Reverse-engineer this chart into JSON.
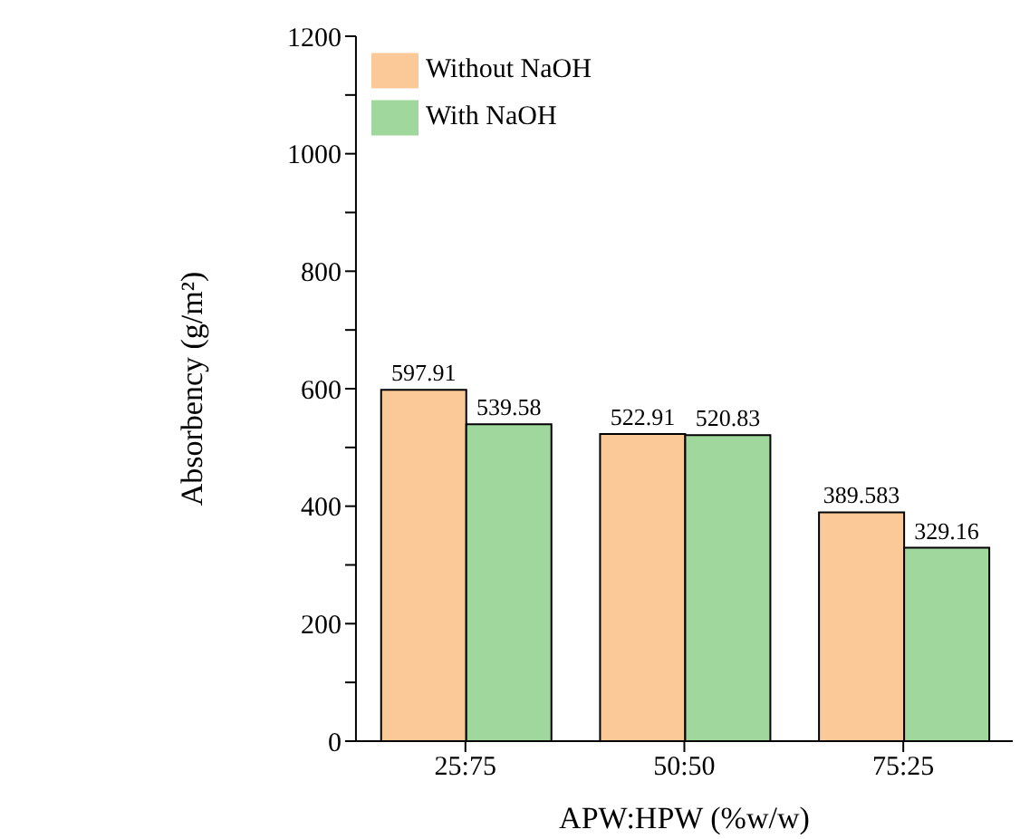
{
  "chart_data": {
    "type": "bar",
    "xlabel": "APW:HPW (%w/w)",
    "ylabel": "Absorbency (g/m²)",
    "categories": [
      "25:75",
      "50:50",
      "75:25"
    ],
    "series": [
      {
        "name": "Without NaOH",
        "color": "#fbc898",
        "values": [
          597.91,
          522.91,
          389.583
        ]
      },
      {
        "name": "With NaOH",
        "color": "#9fd79d",
        "values": [
          539.58,
          520.83,
          329.16
        ]
      }
    ],
    "ylim": [
      0,
      1200
    ],
    "yticks": [
      0,
      {
        "value": 100,
        "label": null
      },
      200,
      {
        "value": 300,
        "label": null
      },
      400,
      {
        "value": 500,
        "label": null
      },
      600,
      {
        "value": 700,
        "label": null
      },
      800,
      {
        "value": 900,
        "label": null
      },
      1000,
      {
        "value": 1100,
        "label": null
      },
      1200
    ],
    "data_labels": true,
    "grid": false,
    "legend": "top left"
  }
}
